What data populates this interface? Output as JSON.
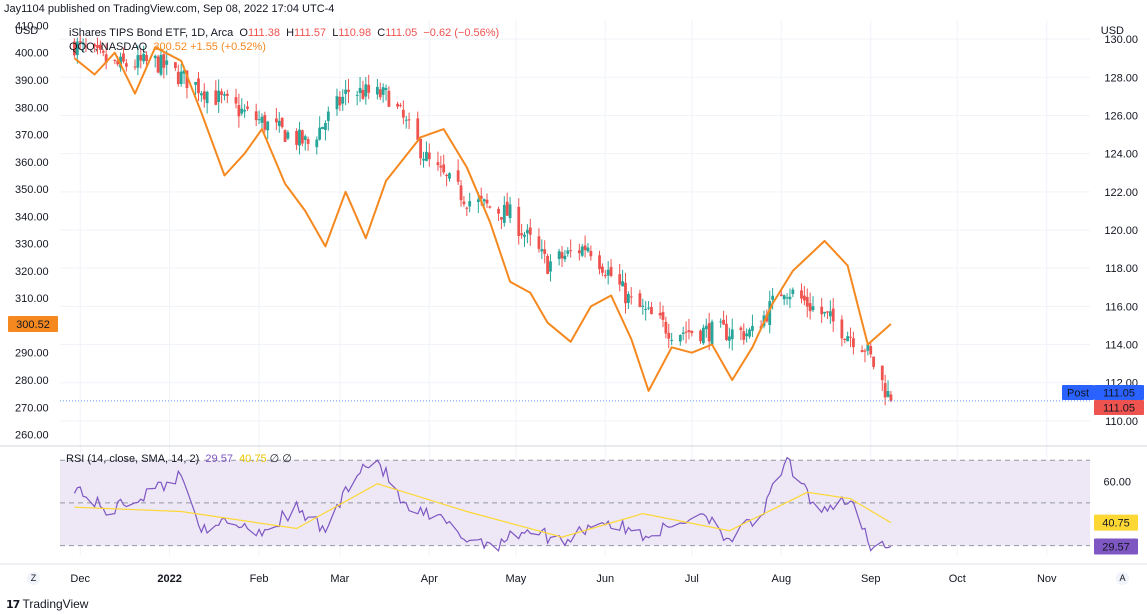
{
  "publisher": "Jay1104 published on TradingView.com, Sep 08, 2022 17:04 UTC-4",
  "left_unit": "USD",
  "right_unit": "USD",
  "legend": {
    "main": {
      "name": "iShares TIPS Bond ETF, 1D, Arca",
      "o_label": "O",
      "o": "111.38",
      "h_label": "H",
      "h": "111.57",
      "l_label": "L",
      "l": "110.98",
      "c_label": "C",
      "c": "111.05",
      "chg": "−0.62 (−0.56%)"
    },
    "compare": {
      "name": "QQQ, NASDAQ",
      "last": "300.52",
      "chg": "+1.55 (+0.52%)"
    }
  },
  "rsi_legend": {
    "title": "RSI (14, close, SMA, 14, 2)",
    "rsi": "29.57",
    "ma": "40.75",
    "sym": "∅ ∅"
  },
  "price_labels": {
    "qqq": "300.52",
    "post_label": "Post",
    "post_value": "111.05",
    "last_value": "111.05",
    "rsi_ma": "40.75",
    "rsi": "29.57"
  },
  "branding": "TradingView",
  "buttons": {
    "zoom": "Z",
    "auto": "A"
  },
  "colors": {
    "up": "#26a69a",
    "down": "#ef5350",
    "qqq": "#f5891f",
    "rsi": "#7e57c2",
    "rsi_ma": "#fdd835",
    "rsi_band": "#ede7f6",
    "post": "#2962ff",
    "grid": "#f0f3fa"
  },
  "chart_data": [
    {
      "type": "candlestick",
      "title": "iShares TIPS Bond ETF, 1D, Arca",
      "x_ticks": [
        "Dec",
        "2022",
        "Feb",
        "Mar",
        "Apr",
        "May",
        "Jun",
        "Jul",
        "Aug",
        "Sep",
        "Oct",
        "Nov"
      ],
      "y_ticks": [
        "110.00",
        "112.00",
        "114.00",
        "116.00",
        "118.00",
        "120.00",
        "122.00",
        "124.00",
        "126.00",
        "128.00",
        "130.00"
      ],
      "ylim": [
        109,
        131
      ],
      "close_x": [
        "2021-11-29",
        "2021-12-13",
        "2021-12-27",
        "2022-01-10",
        "2022-01-21",
        "2022-02-04",
        "2022-02-18",
        "2022-03-04",
        "2022-03-18",
        "2022-04-01",
        "2022-04-14",
        "2022-04-29",
        "2022-05-12",
        "2022-05-26",
        "2022-06-10",
        "2022-06-24",
        "2022-07-08",
        "2022-07-22",
        "2022-08-02",
        "2022-08-16",
        "2022-08-30",
        "2022-09-08"
      ],
      "close_y": [
        129.7,
        128.6,
        128.8,
        127.6,
        126.6,
        125.5,
        124.5,
        127.3,
        127.0,
        123.5,
        121.6,
        120.8,
        118.2,
        119.2,
        116.2,
        114.7,
        114.7,
        114.6,
        117.0,
        115.5,
        113.9,
        111.05
      ],
      "last": {
        "open": 111.38,
        "high": 111.57,
        "low": 110.98,
        "close": 111.05
      }
    },
    {
      "type": "line",
      "series": [
        {
          "name": "QQQ, NASDAQ",
          "x": [
            "2021-11-29",
            "2021-12-06",
            "2021-12-13",
            "2021-12-20",
            "2021-12-27",
            "2022-01-05",
            "2022-01-12",
            "2022-01-20",
            "2022-01-27",
            "2022-02-02",
            "2022-02-10",
            "2022-02-17",
            "2022-02-24",
            "2022-03-03",
            "2022-03-10",
            "2022-03-17",
            "2022-03-29",
            "2022-04-06",
            "2022-04-14",
            "2022-04-22",
            "2022-04-29",
            "2022-05-06",
            "2022-05-12",
            "2022-05-20",
            "2022-05-27",
            "2022-06-03",
            "2022-06-10",
            "2022-06-16",
            "2022-06-24",
            "2022-07-01",
            "2022-07-08",
            "2022-07-15",
            "2022-07-22",
            "2022-07-29",
            "2022-08-05",
            "2022-08-16",
            "2022-08-24",
            "2022-08-31",
            "2022-09-08"
          ],
          "values": [
            398,
            392,
            400,
            385,
            402,
            397,
            378,
            355,
            363,
            372,
            352,
            342,
            329,
            349,
            332,
            353,
            369,
            372,
            358,
            338,
            316,
            312,
            301,
            294,
            307,
            311,
            295,
            276,
            292,
            290,
            293,
            280,
            292,
            308,
            320,
            331,
            322,
            293,
            300.52
          ]
        }
      ],
      "y_ticks": [
        "260.00",
        "270.00",
        "280.00",
        "290.00",
        "300.00",
        "310.00",
        "320.00",
        "330.00",
        "340.00",
        "350.00",
        "360.00",
        "370.00",
        "380.00",
        "390.00",
        "400.00",
        "410.00"
      ],
      "ylim": [
        258,
        412
      ]
    },
    {
      "type": "line",
      "title": "RSI (14, close, SMA, 14, 2)",
      "y_ticks": [
        "60.00"
      ],
      "bands": [
        30,
        50,
        70
      ],
      "ylim": [
        27,
        72
      ],
      "series": [
        {
          "name": "RSI",
          "x": [
            "2021-11-29",
            "2021-12-10",
            "2021-12-22",
            "2022-01-05",
            "2022-01-14",
            "2022-01-20",
            "2022-02-02",
            "2022-02-14",
            "2022-02-24",
            "2022-03-07",
            "2022-03-14",
            "2022-03-24",
            "2022-04-05",
            "2022-04-14",
            "2022-04-25",
            "2022-05-05",
            "2022-05-17",
            "2022-05-30",
            "2022-06-14",
            "2022-06-23",
            "2022-07-05",
            "2022-07-14",
            "2022-07-25",
            "2022-08-03",
            "2022-08-10",
            "2022-08-16",
            "2022-08-25",
            "2022-09-01",
            "2022-09-08"
          ],
          "values": [
            58,
            46,
            53,
            63,
            33,
            42,
            37,
            47,
            37,
            66,
            70,
            47,
            42,
            33,
            31,
            38,
            32,
            42,
            35,
            38,
            46,
            33,
            44,
            70,
            53,
            48,
            52,
            28,
            29.57
          ]
        },
        {
          "name": "RSI-based MA",
          "x": [
            "2021-11-29",
            "2022-01-05",
            "2022-02-14",
            "2022-03-14",
            "2022-04-14",
            "2022-05-17",
            "2022-06-14",
            "2022-07-14",
            "2022-08-10",
            "2022-08-25",
            "2022-09-08"
          ],
          "values": [
            48,
            46,
            38,
            59,
            46,
            34,
            45,
            37,
            55,
            52,
            40.75
          ]
        }
      ]
    }
  ]
}
